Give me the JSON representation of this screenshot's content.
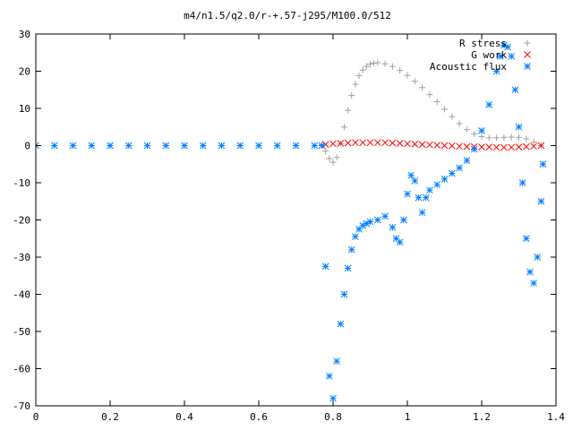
{
  "chart_data": {
    "type": "scatter",
    "title": "m4/n1.5/q2.0/r-+.57-j295/M100.0/512",
    "xlabel": "",
    "ylabel": "",
    "xlim": [
      0,
      1.4
    ],
    "ylim": [
      -70,
      30
    ],
    "x_ticks": [
      0,
      0.2,
      0.4,
      0.6,
      0.8,
      1,
      1.2,
      1.4
    ],
    "x_tick_labels": [
      "0",
      "0.2",
      "0.4",
      "0.6",
      "0.8",
      "1",
      "1.2",
      "1.4"
    ],
    "y_ticks": [
      30,
      20,
      10,
      0,
      -10,
      -20,
      -30,
      -40,
      -50,
      -60,
      -70
    ],
    "y_tick_labels": [
      "30",
      "20",
      "10",
      "0",
      "-10",
      "-20",
      "-30",
      "-40",
      "-50",
      "-60",
      "-70"
    ],
    "grid": false,
    "legend_position": "top-right",
    "series": [
      {
        "name": "R stress",
        "marker": "plus",
        "color": "#a0a0a0",
        "x": [
          0.0,
          0.1,
          0.2,
          0.3,
          0.4,
          0.5,
          0.6,
          0.7,
          0.77,
          0.78,
          0.79,
          0.8,
          0.81,
          0.82,
          0.83,
          0.84,
          0.85,
          0.86,
          0.87,
          0.88,
          0.89,
          0.9,
          0.91,
          0.92,
          0.94,
          0.96,
          0.98,
          1.0,
          1.02,
          1.04,
          1.06,
          1.08,
          1.1,
          1.12,
          1.14,
          1.16,
          1.18,
          1.2,
          1.22,
          1.24,
          1.26,
          1.28,
          1.3,
          1.32,
          1.34,
          1.36
        ],
        "y": [
          0,
          0,
          0,
          0,
          0,
          0,
          0,
          0,
          0.2,
          -1.5,
          -3.5,
          -4.5,
          -3.2,
          0.5,
          5,
          9.5,
          13.5,
          16.5,
          18.8,
          20.3,
          21.3,
          21.9,
          22.2,
          22.3,
          22.0,
          21.3,
          20.2,
          18.9,
          17.3,
          15.6,
          13.7,
          11.8,
          9.8,
          7.8,
          5.9,
          4.3,
          3.1,
          2.4,
          2.1,
          2.1,
          2.2,
          2.3,
          2.2,
          1.8,
          0.9,
          0
        ]
      },
      {
        "name": "G work",
        "marker": "cross",
        "color": "#ff0000",
        "x": [
          0.78,
          0.8,
          0.82,
          0.84,
          0.86,
          0.88,
          0.9,
          0.92,
          0.94,
          0.96,
          0.98,
          1.0,
          1.02,
          1.04,
          1.06,
          1.08,
          1.1,
          1.12,
          1.14,
          1.16,
          1.18,
          1.2,
          1.22,
          1.24,
          1.26,
          1.28,
          1.3,
          1.32,
          1.34,
          1.36
        ],
        "y": [
          0.3,
          0.5,
          0.6,
          0.7,
          0.8,
          0.8,
          0.8,
          0.8,
          0.8,
          0.7,
          0.6,
          0.5,
          0.4,
          0.3,
          0.2,
          0.1,
          0.0,
          -0.1,
          -0.2,
          -0.3,
          -0.3,
          -0.4,
          -0.4,
          -0.5,
          -0.5,
          -0.5,
          -0.4,
          -0.3,
          -0.2,
          0
        ]
      },
      {
        "name": "Acoustic flux",
        "marker": "star",
        "color": "#0080ff",
        "x": [
          0.0,
          0.05,
          0.1,
          0.15,
          0.2,
          0.25,
          0.3,
          0.35,
          0.4,
          0.45,
          0.5,
          0.55,
          0.6,
          0.65,
          0.7,
          0.75,
          0.77,
          0.78,
          0.79,
          0.8,
          0.81,
          0.82,
          0.83,
          0.84,
          0.85,
          0.86,
          0.87,
          0.88,
          0.89,
          0.9,
          0.92,
          0.94,
          0.96,
          0.97,
          0.98,
          0.99,
          1.0,
          1.01,
          1.02,
          1.03,
          1.04,
          1.05,
          1.06,
          1.08,
          1.1,
          1.12,
          1.14,
          1.16,
          1.18,
          1.2,
          1.22,
          1.24,
          1.25,
          1.26,
          1.27,
          1.28,
          1.29,
          1.3,
          1.31,
          1.32,
          1.33,
          1.34,
          1.35,
          1.36,
          1.365
        ],
        "y": [
          0,
          0,
          0,
          0,
          0,
          0,
          0,
          0,
          0,
          0,
          0,
          0,
          0,
          0,
          0,
          0,
          0,
          -32.5,
          -62,
          -68,
          -58,
          -48,
          -40,
          -33,
          -28,
          -24.5,
          -22.5,
          -21.5,
          -21,
          -20.5,
          -20,
          -19,
          -22,
          -25,
          -26,
          -20,
          -13,
          -8,
          -9.5,
          -14,
          -18,
          -14,
          -12,
          -10.5,
          -9,
          -7.5,
          -6,
          -4,
          -1,
          4,
          11,
          20,
          24,
          27,
          26.5,
          24,
          15,
          5,
          -10,
          -25,
          -34,
          -37,
          -30,
          -15,
          -5
        ]
      }
    ]
  }
}
